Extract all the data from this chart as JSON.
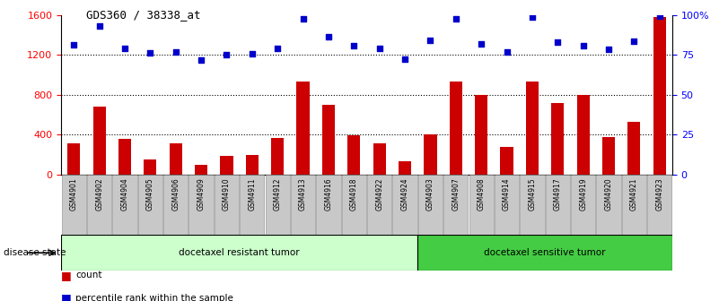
{
  "title": "GDS360 / 38338_at",
  "categories": [
    "GSM4901",
    "GSM4902",
    "GSM4904",
    "GSM4905",
    "GSM4906",
    "GSM4909",
    "GSM4910",
    "GSM4911",
    "GSM4912",
    "GSM4913",
    "GSM4916",
    "GSM4918",
    "GSM4922",
    "GSM4924",
    "GSM4903",
    "GSM4907",
    "GSM4908",
    "GSM4914",
    "GSM4915",
    "GSM4917",
    "GSM4919",
    "GSM4920",
    "GSM4921",
    "GSM4923"
  ],
  "bar_values": [
    310,
    680,
    360,
    150,
    310,
    95,
    185,
    195,
    370,
    930,
    700,
    390,
    310,
    130,
    400,
    930,
    800,
    280,
    930,
    720,
    800,
    380,
    530,
    1580
  ],
  "scatter_values": [
    1300,
    1490,
    1270,
    1220,
    1230,
    1150,
    1200,
    1210,
    1270,
    1560,
    1380,
    1290,
    1270,
    1155,
    1350,
    1560,
    1310,
    1230,
    1580,
    1330,
    1290,
    1260,
    1340,
    1590
  ],
  "group1_label": "docetaxel resistant tumor",
  "group2_label": "docetaxel sensitive tumor",
  "group1_count": 14,
  "group2_count": 10,
  "ylim_left": [
    0,
    1600
  ],
  "ylim_right": [
    0,
    100
  ],
  "yticks_left": [
    0,
    400,
    800,
    1200,
    1600
  ],
  "yticks_right": [
    0,
    25,
    50,
    75,
    100
  ],
  "bar_color": "#cc0000",
  "scatter_color": "#0000cc",
  "legend_count_label": "count",
  "legend_percentile_label": "percentile rank within the sample",
  "disease_state_label": "disease state",
  "group_bg_color1": "#ccffcc",
  "group_bg_color2": "#44cc44",
  "xlabel_bg_color": "#c8c8c8",
  "grid_lines": [
    400,
    800,
    1200
  ],
  "bar_width": 0.5
}
